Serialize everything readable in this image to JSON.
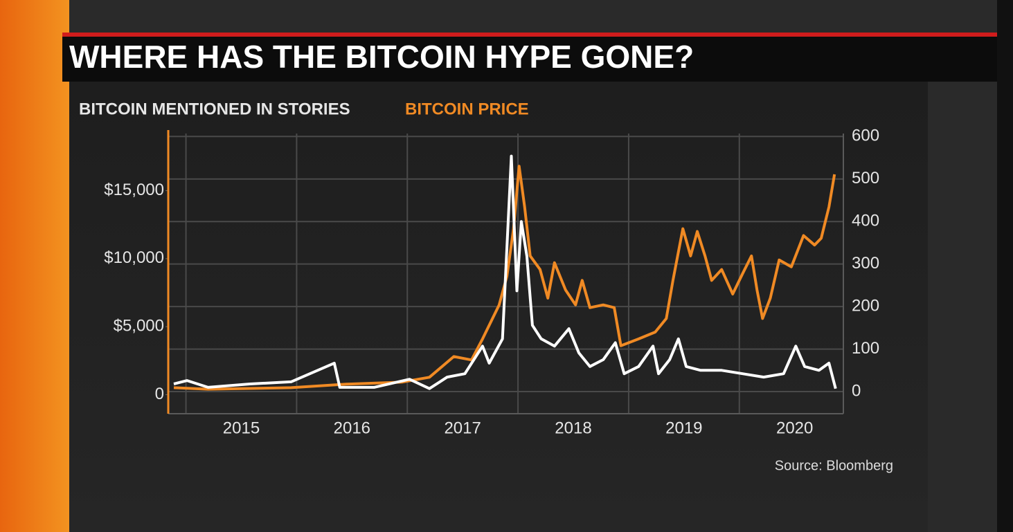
{
  "chart_data": {
    "type": "line",
    "title": "WHERE HAS THE BITCOIN HYPE GONE?",
    "source": "Source: Bloomberg",
    "xlim": [
      2014.84,
      2020.94
    ],
    "xticks": [
      2015,
      2016,
      2017,
      2018,
      2019,
      2020
    ],
    "ylim": [
      -1400,
      19200
    ],
    "yticks": [
      0,
      {
        "value": 5000,
        "label": "$5,000"
      },
      {
        "value": 10000,
        "label": "$10,000"
      },
      {
        "value": 15000,
        "label": "$15,000"
      }
    ],
    "y2lim": [
      -52,
      607
    ],
    "y2ticks": [
      0,
      100,
      200,
      300,
      400,
      500,
      600
    ],
    "grid": true,
    "series": [
      {
        "name": "BITCOIN MENTIONED IN STORIES",
        "color": "#ffffff",
        "axis": "y2",
        "x": [
          2014.89,
          2015.01,
          2015.2,
          2015.58,
          2015.95,
          2016.34,
          2016.39,
          2016.7,
          2017.02,
          2017.2,
          2017.36,
          2017.52,
          2017.68,
          2017.74,
          2017.86,
          2017.94,
          2017.99,
          2018.03,
          2018.08,
          2018.13,
          2018.21,
          2018.33,
          2018.46,
          2018.55,
          2018.65,
          2018.77,
          2018.88,
          2018.96,
          2019.09,
          2019.22,
          2019.27,
          2019.37,
          2019.45,
          2019.52,
          2019.65,
          2019.84,
          2020.03,
          2020.22,
          2020.4,
          2020.51,
          2020.59,
          2020.72,
          2020.81,
          2020.87
        ],
        "values": [
          18,
          26,
          10,
          18,
          23,
          67,
          10,
          10,
          29,
          7,
          34,
          42,
          107,
          67,
          124,
          554,
          237,
          400,
          319,
          156,
          124,
          107,
          148,
          91,
          59,
          75,
          115,
          42,
          59,
          107,
          42,
          75,
          124,
          59,
          50,
          50,
          42,
          34,
          42,
          107,
          59,
          50,
          67,
          7
        ]
      },
      {
        "name": "BITCOIN PRICE",
        "color": "#f08a24",
        "axis": "y",
        "x": [
          2014.89,
          2015.2,
          2015.95,
          2016.45,
          2016.95,
          2017.2,
          2017.42,
          2017.58,
          2017.68,
          2017.77,
          2017.83,
          2017.9,
          2017.96,
          2018.01,
          2018.06,
          2018.11,
          2018.2,
          2018.27,
          2018.33,
          2018.43,
          2018.52,
          2018.58,
          2018.65,
          2018.77,
          2018.87,
          2018.93,
          2019.09,
          2019.24,
          2019.34,
          2019.4,
          2019.49,
          2019.56,
          2019.62,
          2019.69,
          2019.75,
          2019.84,
          2019.94,
          2020.03,
          2020.11,
          2020.16,
          2020.21,
          2020.28,
          2020.36,
          2020.47,
          2020.58,
          2020.68,
          2020.74,
          2020.81,
          2020.86
        ],
        "values": [
          510,
          400,
          510,
          770,
          920,
          1280,
          2800,
          2550,
          4100,
          5600,
          6600,
          8700,
          12200,
          16800,
          13800,
          10200,
          9200,
          7100,
          9700,
          7700,
          6600,
          8400,
          6400,
          6600,
          6400,
          3600,
          4100,
          4600,
          5600,
          8400,
          12200,
          10200,
          12000,
          10200,
          8400,
          9200,
          7400,
          8900,
          10200,
          7700,
          5600,
          7100,
          9900,
          9400,
          11700,
          11000,
          11500,
          13800,
          16200
        ]
      }
    ]
  }
}
